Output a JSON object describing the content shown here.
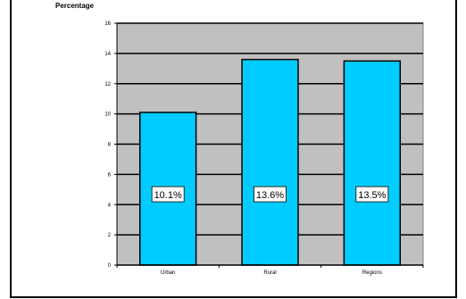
{
  "chart_data": {
    "type": "bar",
    "ylabel": "Percentage",
    "categories": [
      "Urban",
      "Rural",
      "Regions"
    ],
    "values": [
      10.1,
      13.6,
      13.5
    ],
    "data_labels": [
      "10.1%",
      "13.6%",
      "13.5%"
    ],
    "ylim": [
      0,
      16
    ],
    "yticks": [
      0,
      2,
      4,
      6,
      8,
      10,
      12,
      14,
      16
    ],
    "grid": true,
    "legend": "none",
    "colors": {
      "bar": "#00ccff",
      "plot_background": "#c0c0c0",
      "gridline": "#000000"
    }
  }
}
